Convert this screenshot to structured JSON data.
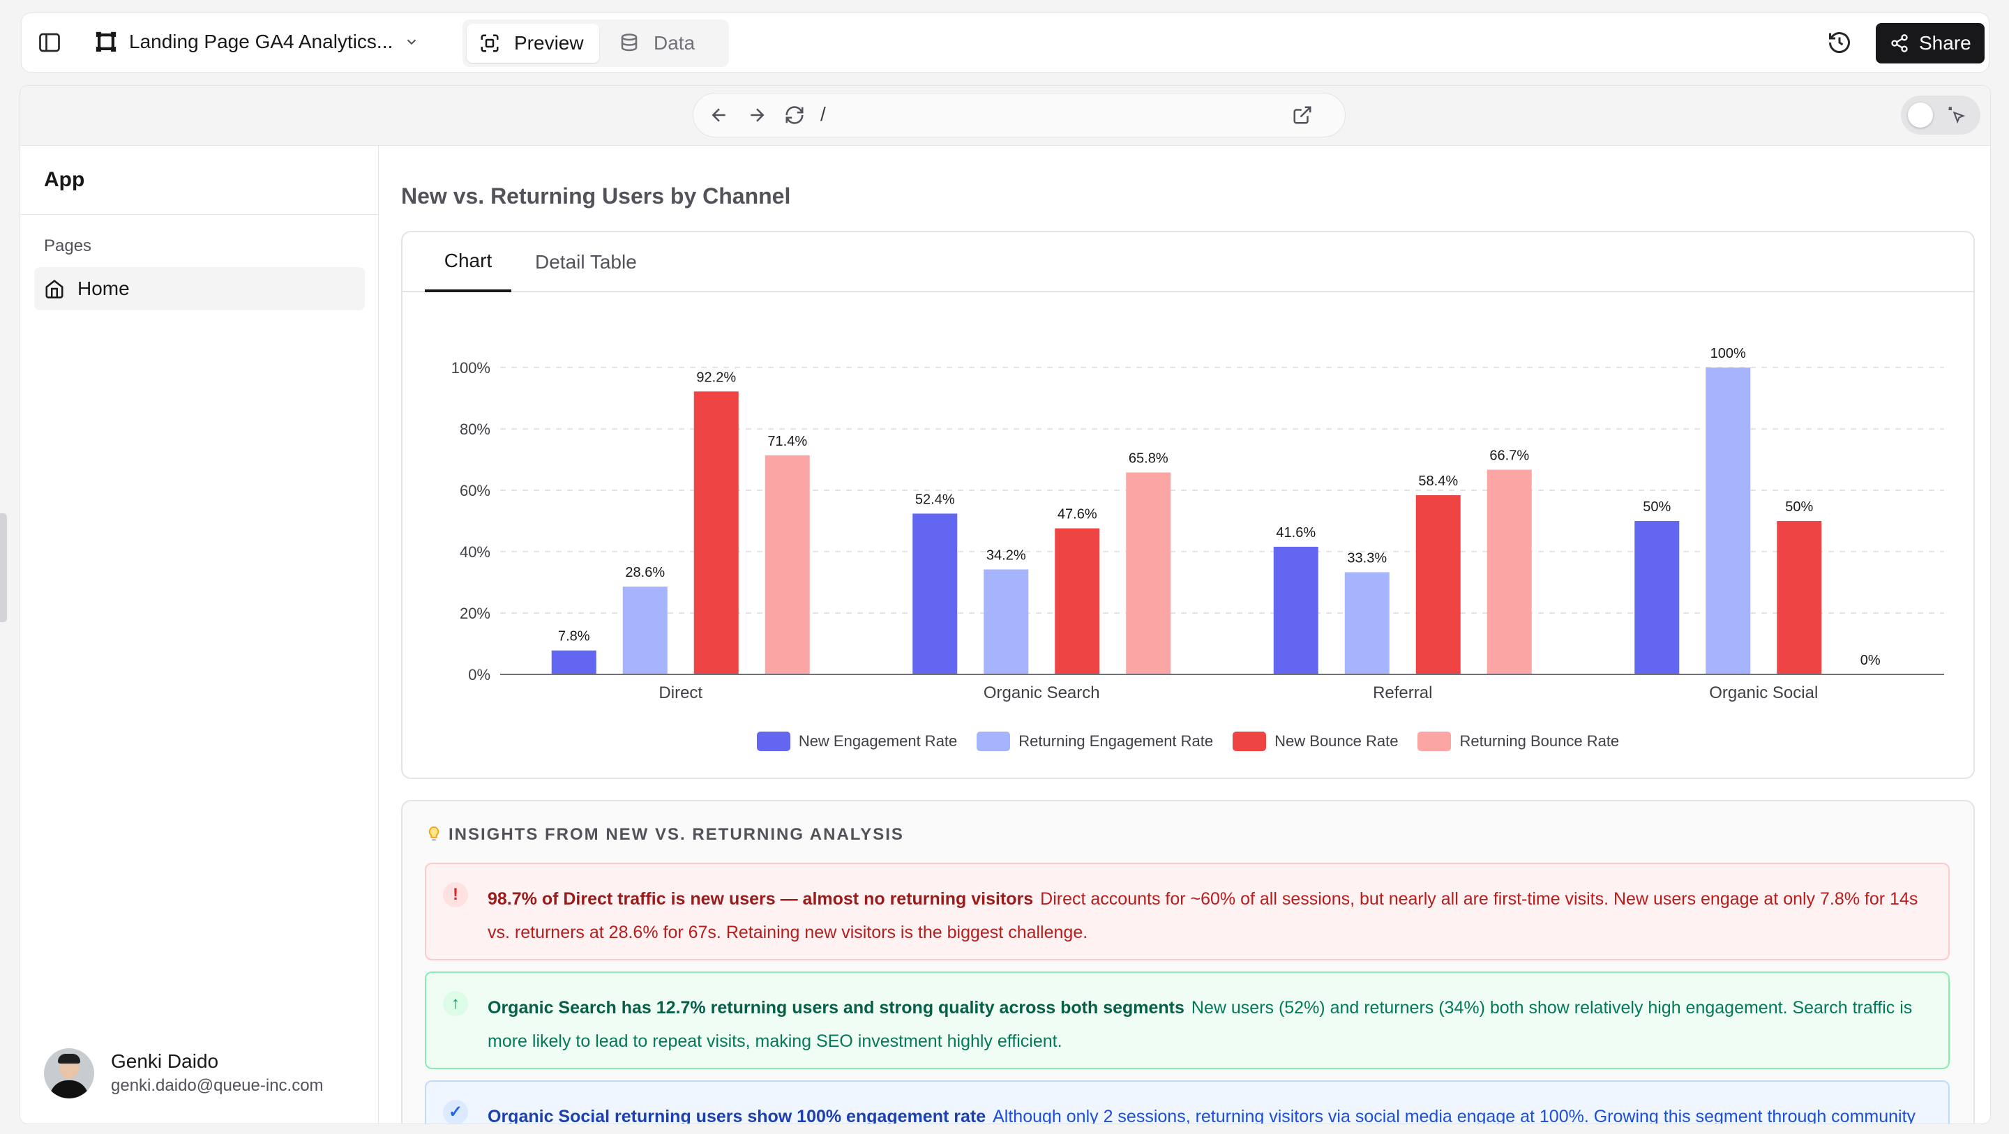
{
  "topbar": {
    "project_title": "Landing Page GA4 Analytics...",
    "preview_label": "Preview",
    "data_label": "Data",
    "share_label": "Share"
  },
  "browser": {
    "url": "/"
  },
  "sidebar": {
    "app_title": "App",
    "section_label": "Pages",
    "items": [
      {
        "label": "Home"
      }
    ],
    "user": {
      "name": "Genki Daido",
      "email": "genki.daido@queue-inc.com"
    }
  },
  "main": {
    "page_title": "New vs. Returning Users by Channel",
    "tabs": [
      {
        "label": "Chart"
      },
      {
        "label": "Detail Table"
      }
    ],
    "insights": {
      "header": "INSIGHTS FROM NEW VS. RETURNING ANALYSIS",
      "items": [
        {
          "kind": "warning",
          "icon": "!",
          "title": "98.7% of Direct traffic is new users — almost no returning visitors",
          "body": "Direct accounts for ~60% of all sessions, but nearly all are first-time visits. New users engage at only 7.8% for 14s vs. returners at 28.6% for 67s. Retaining new visitors is the biggest challenge."
        },
        {
          "kind": "positive",
          "icon": "↑",
          "title": "Organic Search has 12.7% returning users and strong quality across both segments",
          "body": "New users (52%) and returners (34%) both show relatively high engagement. Search traffic is more likely to lead to repeat visits, making SEO investment highly efficient."
        },
        {
          "kind": "info",
          "icon": "✓",
          "title": "Organic Social returning users show 100% engagement rate",
          "body": "Although only 2 sessions, returning visitors via social media engage at 100%. Growing this segment through community"
        }
      ]
    }
  },
  "colors": {
    "new_engagement": "#6366f1",
    "returning_engagement": "#a5b4fc",
    "new_bounce": "#ef4444",
    "returning_bounce": "#fca5a5"
  },
  "chart_data": {
    "type": "bar",
    "categories": [
      "Direct",
      "Organic Search",
      "Referral",
      "Organic Social"
    ],
    "series": [
      {
        "name": "New Engagement Rate",
        "values": [
          7.8,
          52.4,
          41.6,
          50
        ],
        "labels": [
          "7.8%",
          "52.4%",
          "41.6%",
          "50%"
        ]
      },
      {
        "name": "Returning Engagement Rate",
        "values": [
          28.6,
          34.2,
          33.3,
          100
        ],
        "labels": [
          "28.6%",
          "34.2%",
          "33.3%",
          "100%"
        ]
      },
      {
        "name": "New Bounce Rate",
        "values": [
          92.2,
          47.6,
          58.4,
          50
        ],
        "labels": [
          "92.2%",
          "47.6%",
          "58.4%",
          "50%"
        ]
      },
      {
        "name": "Returning Bounce Rate",
        "values": [
          71.4,
          65.8,
          66.7,
          0
        ],
        "labels": [
          "71.4%",
          "65.8%",
          "66.7%",
          "0%"
        ]
      }
    ],
    "ylim": [
      0,
      100
    ],
    "yticks": [
      "0%",
      "20%",
      "40%",
      "60%",
      "80%",
      "100%"
    ],
    "grid": true,
    "legend_position": "bottom"
  }
}
